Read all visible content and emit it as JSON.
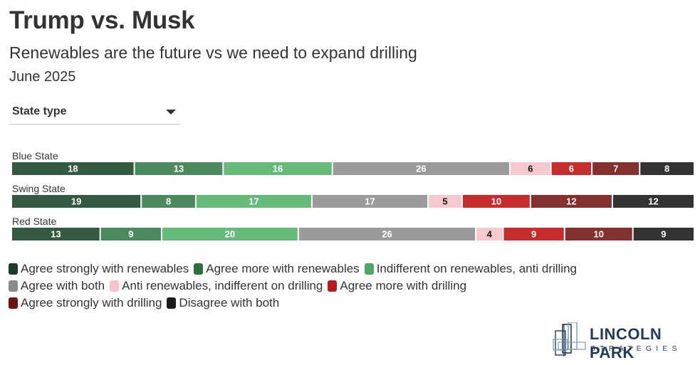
{
  "header": {
    "title": "Trump vs. Musk",
    "subtitle": "Renewables are the future vs we need to expand drilling",
    "date": "June 2025"
  },
  "filter": {
    "label": "State type",
    "icon": "chevron-down-icon"
  },
  "chart_data": {
    "type": "bar",
    "orientation": "horizontal",
    "stacked": true,
    "categories": [
      "Blue State",
      "Swing State",
      "Red State"
    ],
    "series": [
      {
        "name": "Agree strongly with renewables",
        "color": "#355a42",
        "values": [
          18,
          19,
          13
        ]
      },
      {
        "name": "Agree more with renewables",
        "color": "#4b8a5d",
        "values": [
          13,
          8,
          9
        ]
      },
      {
        "name": "Indifferent on renewables, anti drilling",
        "color": "#66bb7a",
        "values": [
          16,
          17,
          20
        ]
      },
      {
        "name": "Agree with both",
        "color": "#9b9b9b",
        "values": [
          26,
          17,
          26
        ]
      },
      {
        "name": "Anti renewables, indifferent on drilling",
        "color": "#f6c9cf",
        "values": [
          6,
          5,
          4
        ]
      },
      {
        "name": "Agree more with drilling",
        "color": "#c72d2d",
        "values": [
          6,
          10,
          9
        ]
      },
      {
        "name": "Agree strongly with drilling",
        "color": "#84302f",
        "values": [
          7,
          12,
          10
        ]
      },
      {
        "name": "Disagree with both",
        "color": "#333333",
        "values": [
          8,
          12,
          9
        ]
      }
    ],
    "data_labels": true,
    "legend_position": "bottom"
  },
  "legend": {
    "rows": [
      [
        {
          "label": "Agree strongly with renewables",
          "color": "#1d3b26"
        },
        {
          "label": "Agree more with renewables",
          "color": "#2f6e3f"
        },
        {
          "label": "Indifferent on renewables, anti drilling",
          "color": "#4ea764"
        }
      ],
      [
        {
          "label": "Agree with both",
          "color": "#8a8a8a"
        },
        {
          "label": "Anti renewables, indifferent on drilling",
          "color": "#f7c4cb"
        },
        {
          "label": "Agree more with drilling",
          "color": "#b71c1c"
        }
      ],
      [
        {
          "label": "Agree strongly with drilling",
          "color": "#6a1414"
        },
        {
          "label": "Disagree with both",
          "color": "#1a1a1a"
        }
      ]
    ]
  },
  "logo": {
    "name": "LINCOLN PARK",
    "sub": "STRATEGIES"
  }
}
